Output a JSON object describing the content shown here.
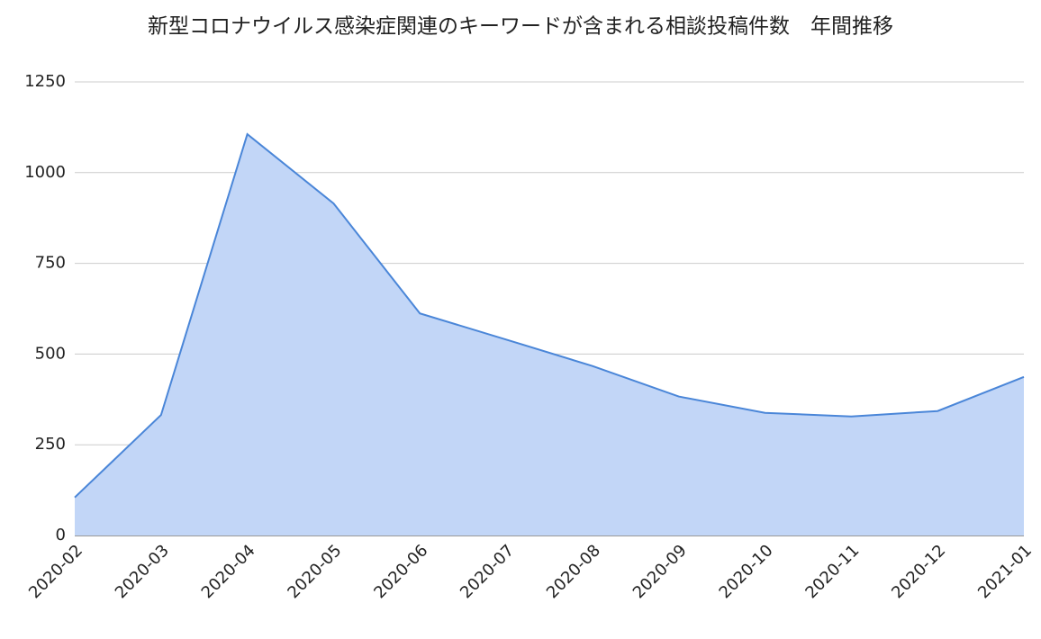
{
  "chart_data": {
    "type": "area",
    "title": "新型コロナウイルス感染症関連のキーワードが含まれる相談投稿件数　年間推移",
    "categories": [
      "2020-02",
      "2020-03",
      "2020-04",
      "2020-05",
      "2020-06",
      "2020-07",
      "2020-08",
      "2020-09",
      "2020-10",
      "2020-11",
      "2020-12",
      "2021-01"
    ],
    "values": [
      105,
      332,
      1106,
      915,
      612,
      540,
      467,
      383,
      338,
      328,
      343,
      437
    ],
    "color": "#4a86d8",
    "fill": "#c2d6f7",
    "ylim": [
      0,
      1250
    ],
    "yticks": [
      0,
      250,
      500,
      750,
      1000,
      1250
    ],
    "grid": true
  }
}
